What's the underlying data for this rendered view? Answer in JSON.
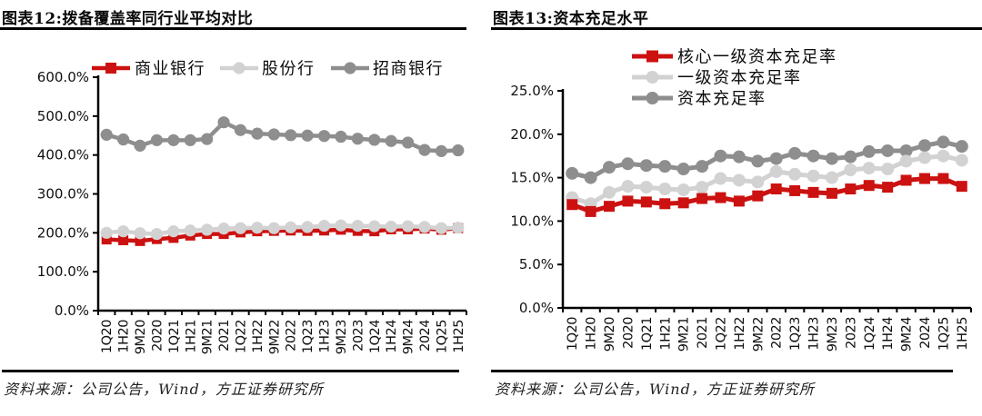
{
  "figures": [
    {
      "title": "图表12:拨备覆盖率同行业平均对比",
      "source": "资料来源：公司公告，Wind，方正证券研究所"
    },
    {
      "title": "图表13:资本充足水平",
      "source": "资料来源：公司公告，Wind，方正证券研究所"
    }
  ],
  "colors": {
    "series_red": "#CC1111",
    "series_light_gray": "#D2D2D2",
    "series_dark_gray": "#8E8E8E",
    "axis": "#000000",
    "text": "#111111"
  },
  "chart_data": [
    {
      "type": "line",
      "title": "图表12:拨备覆盖率同行业平均对比",
      "categories": [
        "1Q20",
        "1H20",
        "9M20",
        "2020",
        "1Q21",
        "1H21",
        "9M21",
        "2021",
        "1Q22",
        "1H22",
        "9M22",
        "2022",
        "1Q23",
        "1H23",
        "9M23",
        "2023",
        "1Q24",
        "1H24",
        "9M24",
        "2024",
        "1Q25",
        "1H25"
      ],
      "ylim": [
        0,
        600
      ],
      "ytick_step": 100,
      "ytick_labels": [
        "0.0%",
        "100.0%",
        "200.0%",
        "300.0%",
        "400.0%",
        "500.0%",
        "600.0%"
      ],
      "grid": false,
      "legend_position": "top-horizontal",
      "series": [
        {
          "name": "商业银行",
          "color": "#CC1111",
          "marker": "square",
          "values": [
            183,
            181,
            179,
            184,
            187,
            193,
            197,
            197,
            201,
            204,
            205,
            206,
            205,
            206,
            208,
            205,
            204,
            209,
            209,
            211,
            208,
            212
          ]
        },
        {
          "name": "股份行",
          "color": "#D2D2D2",
          "marker": "circle",
          "values": [
            200,
            204,
            199,
            197,
            204,
            206,
            208,
            211,
            212,
            213,
            212,
            214,
            215,
            218,
            219,
            218,
            217,
            216,
            217,
            215,
            212,
            213
          ]
        },
        {
          "name": "招商银行",
          "color": "#8E8E8E",
          "marker": "circle",
          "values": [
            452,
            440,
            424,
            438,
            438,
            438,
            441,
            484,
            464,
            455,
            453,
            451,
            450,
            449,
            447,
            442,
            439,
            436,
            432,
            413,
            410,
            412
          ]
        }
      ]
    },
    {
      "type": "line",
      "title": "图表13:资本充足水平",
      "categories": [
        "1Q20",
        "1H20",
        "9M20",
        "2020",
        "1Q21",
        "1H21",
        "9M21",
        "2021",
        "1Q22",
        "1H22",
        "9M22",
        "2022",
        "1Q23",
        "1H23",
        "9M23",
        "2023",
        "1Q24",
        "1H24",
        "9M24",
        "2024",
        "1Q25",
        "1H25"
      ],
      "ylim": [
        0,
        25
      ],
      "ytick_step": 5,
      "ytick_labels": [
        "0.0%",
        "5.0%",
        "10.0%",
        "15.0%",
        "20.0%",
        "25.0%"
      ],
      "grid": false,
      "legend_position": "top-vertical",
      "series": [
        {
          "name": "核心一级资本充足率",
          "color": "#CC1111",
          "marker": "square",
          "values": [
            11.9,
            11.1,
            11.7,
            12.3,
            12.2,
            12.0,
            12.1,
            12.6,
            12.7,
            12.3,
            12.9,
            13.7,
            13.5,
            13.3,
            13.2,
            13.7,
            14.1,
            13.9,
            14.7,
            14.9,
            14.9,
            14.0
          ]
        },
        {
          "name": "一级资本充足率",
          "color": "#D2D2D2",
          "marker": "circle",
          "values": [
            12.7,
            12.0,
            13.3,
            14.0,
            13.9,
            13.7,
            13.6,
            13.9,
            14.9,
            14.7,
            14.5,
            15.7,
            15.4,
            15.2,
            15.0,
            15.9,
            16.1,
            16.0,
            16.9,
            17.3,
            17.5,
            17.0
          ]
        },
        {
          "name": "资本充足率",
          "color": "#8E8E8E",
          "marker": "circle",
          "values": [
            15.5,
            15.0,
            16.2,
            16.6,
            16.4,
            16.3,
            16.0,
            16.3,
            17.5,
            17.4,
            16.9,
            17.2,
            17.8,
            17.5,
            17.2,
            17.4,
            18.0,
            18.1,
            18.1,
            18.7,
            19.1,
            18.6
          ]
        }
      ]
    }
  ]
}
